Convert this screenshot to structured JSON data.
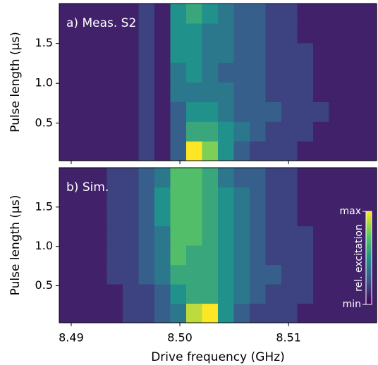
{
  "chart_data": [
    {
      "type": "heatmap",
      "title": "a) Meas. S2",
      "ylabel": "Pulse length (µs)",
      "xlim": [
        8.4889,
        8.5181
      ],
      "ylim": [
        0.03,
        2.0
      ],
      "yticks": [
        0.5,
        {
          "value": 1,
          "label": "1.0"
        },
        1.5
      ],
      "zlim": [
        0,
        10
      ],
      "z": [
        [
          1,
          1,
          1,
          1,
          1,
          2,
          1,
          3,
          10,
          8,
          5,
          3,
          2,
          2,
          2,
          1,
          1,
          1,
          1,
          1
        ],
        [
          1,
          1,
          1,
          1,
          1,
          2,
          1,
          3,
          6,
          6,
          5,
          4,
          3,
          2,
          2,
          2,
          1,
          1,
          1,
          1
        ],
        [
          1,
          1,
          1,
          1,
          1,
          2,
          1,
          3,
          5,
          5,
          4,
          3,
          3,
          3,
          2,
          2,
          2,
          1,
          1,
          1
        ],
        [
          1,
          1,
          1,
          1,
          1,
          2,
          1,
          4,
          4,
          4,
          4,
          3,
          3,
          2,
          2,
          2,
          1,
          1,
          1,
          1
        ],
        [
          1,
          1,
          1,
          1,
          1,
          2,
          1,
          4,
          5,
          4,
          3,
          3,
          3,
          2,
          2,
          2,
          1,
          1,
          1,
          1
        ],
        [
          1,
          1,
          1,
          1,
          1,
          2,
          1,
          5,
          5,
          4,
          4,
          3,
          3,
          2,
          2,
          2,
          1,
          1,
          1,
          1
        ],
        [
          1,
          1,
          1,
          1,
          1,
          2,
          1,
          5,
          5,
          4,
          4,
          3,
          3,
          2,
          2,
          1,
          1,
          1,
          1,
          1
        ],
        [
          1,
          1,
          1,
          1,
          1,
          2,
          1,
          5,
          6,
          5,
          4,
          3,
          3,
          2,
          2,
          1,
          1,
          1,
          1,
          1
        ]
      ]
    },
    {
      "type": "heatmap",
      "title": "b) Sim.",
      "ylabel": "Pulse length (µs)",
      "xlabel": "Drive frequency (GHz)",
      "xlim": [
        8.4889,
        8.5181
      ],
      "ylim": [
        0.03,
        2.0
      ],
      "xticks": [
        8.49,
        {
          "value": 8.5,
          "label": "8.50"
        },
        8.51
      ],
      "yticks": [
        0.5,
        {
          "value": 1,
          "label": "1.0"
        },
        1.5
      ],
      "zlim": [
        0,
        10
      ],
      "cbar_label": "rel. excitation",
      "cbar_ticks": [
        {
          "value": 10,
          "label": "max"
        },
        {
          "value": 0,
          "label": "min"
        }
      ],
      "z": [
        [
          1,
          1,
          1,
          1,
          2,
          2,
          3,
          4,
          9,
          10,
          5,
          3,
          2,
          2,
          2,
          1,
          1,
          1,
          1,
          1
        ],
        [
          1,
          1,
          1,
          1,
          2,
          2,
          3,
          5,
          6,
          6,
          5,
          4,
          3,
          2,
          2,
          2,
          1,
          1,
          1,
          1
        ],
        [
          1,
          1,
          1,
          2,
          2,
          3,
          4,
          6,
          6,
          6,
          5,
          4,
          3,
          3,
          2,
          2,
          1,
          1,
          1,
          1
        ],
        [
          1,
          1,
          1,
          2,
          2,
          3,
          4,
          7,
          6,
          6,
          5,
          4,
          3,
          2,
          2,
          2,
          1,
          1,
          1,
          1
        ],
        [
          1,
          1,
          1,
          2,
          2,
          3,
          4,
          7,
          7,
          6,
          5,
          4,
          3,
          2,
          2,
          2,
          1,
          1,
          1,
          1
        ],
        [
          1,
          1,
          1,
          2,
          2,
          3,
          5,
          7,
          7,
          6,
          5,
          4,
          3,
          2,
          2,
          1,
          1,
          1,
          1,
          1
        ],
        [
          1,
          1,
          1,
          2,
          2,
          3,
          5,
          7,
          7,
          6,
          5,
          4,
          3,
          2,
          2,
          1,
          1,
          1,
          1,
          1
        ],
        [
          1,
          1,
          1,
          2,
          2,
          3,
          4,
          7,
          7,
          6,
          4,
          3,
          3,
          2,
          2,
          1,
          1,
          1,
          1,
          1
        ]
      ]
    }
  ]
}
